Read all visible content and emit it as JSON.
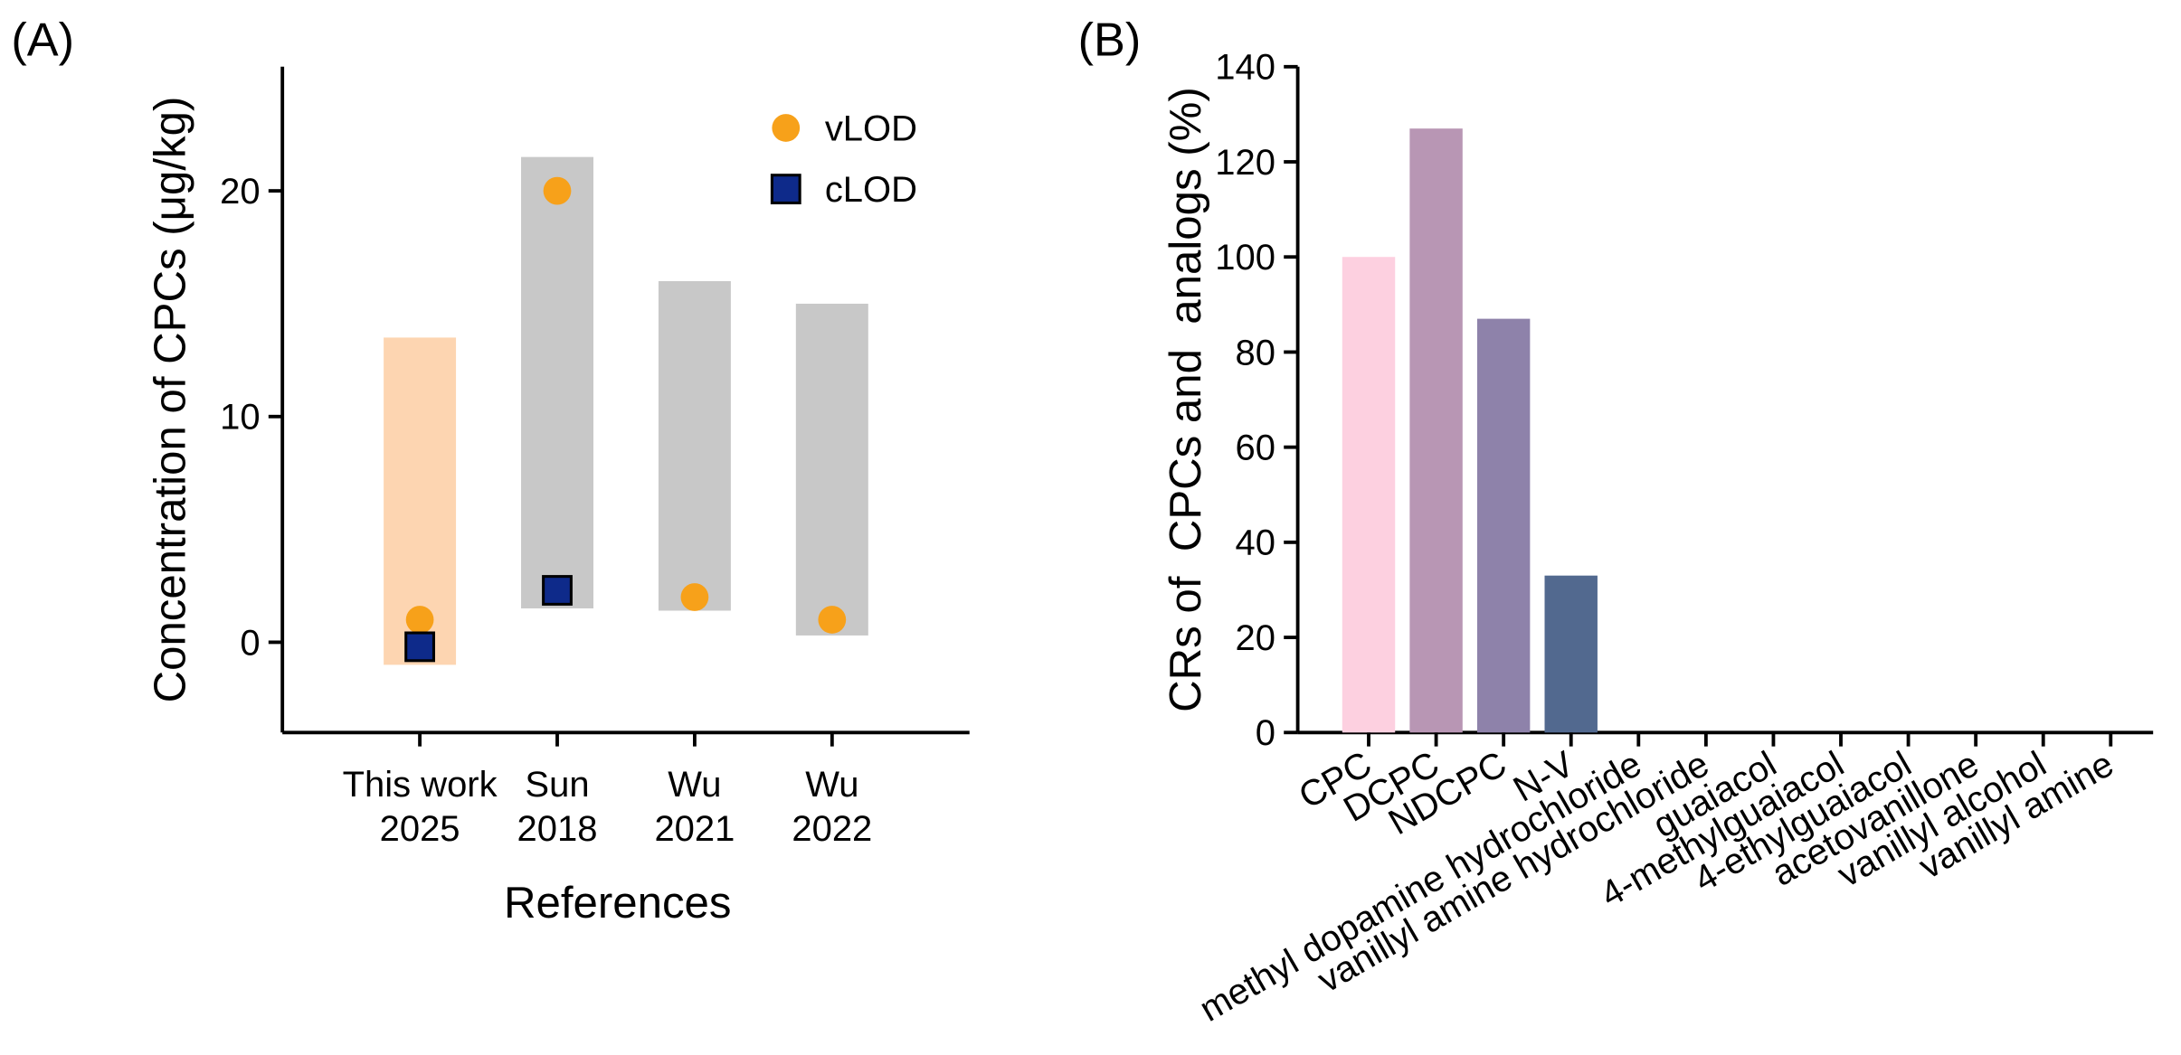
{
  "chart_data": [
    {
      "type": "range",
      "panel": "(A)",
      "ylabel": "Concentration of CPCs (μg/kg)",
      "xlabel": "References",
      "categories": [
        [
          "This work",
          "2025"
        ],
        [
          "Sun",
          "2018"
        ],
        [
          "Wu",
          "2021"
        ],
        [
          "Wu",
          "2022"
        ]
      ],
      "ranges": {
        "low": [
          -1,
          1.5,
          1.4,
          0.3
        ],
        "high": [
          13.5,
          21.5,
          16,
          15
        ],
        "colors": [
          "#fdd5b1",
          "#c8c8c8",
          "#c8c8c8",
          "#c8c8c8"
        ]
      },
      "series": [
        {
          "name": "vLOD",
          "color": "#f7a11a",
          "marker": "circle",
          "values": [
            1,
            20,
            2,
            1
          ]
        },
        {
          "name": "cLOD",
          "color": "#0e2a8a",
          "marker": "square",
          "values": [
            -0.2,
            2.3,
            null,
            null
          ]
        }
      ],
      "ylim": [
        -4,
        25.5
      ],
      "yticks": [
        0,
        10,
        20
      ],
      "legend": "upper right"
    },
    {
      "type": "bar",
      "panel": "(B)",
      "ylabel": "CRs of  CPCs and  analogs (%)",
      "categories": [
        "CPC",
        "DCPC",
        "NDCPC",
        "N-V",
        "methyl dopamine hydrochloride",
        "vanillyl amine hydrochloride",
        "guaiacol",
        "4-methylguaiacol",
        "4-ethylguaiacol",
        "acetovanillone",
        "vanillyl alcohol",
        "vanillyl amine"
      ],
      "values": [
        100,
        127,
        87,
        33,
        0,
        0,
        0,
        0,
        0,
        0,
        0,
        0
      ],
      "colors": [
        "#fdd0e0",
        "#b896b4",
        "#8e82aa",
        "#52698f",
        "#52698f",
        "#52698f",
        "#52698f",
        "#52698f",
        "#52698f",
        "#52698f",
        "#52698f",
        "#52698f"
      ],
      "ylim": [
        0,
        140
      ],
      "yticks": [
        0,
        20,
        40,
        60,
        80,
        100,
        120,
        140
      ]
    }
  ]
}
